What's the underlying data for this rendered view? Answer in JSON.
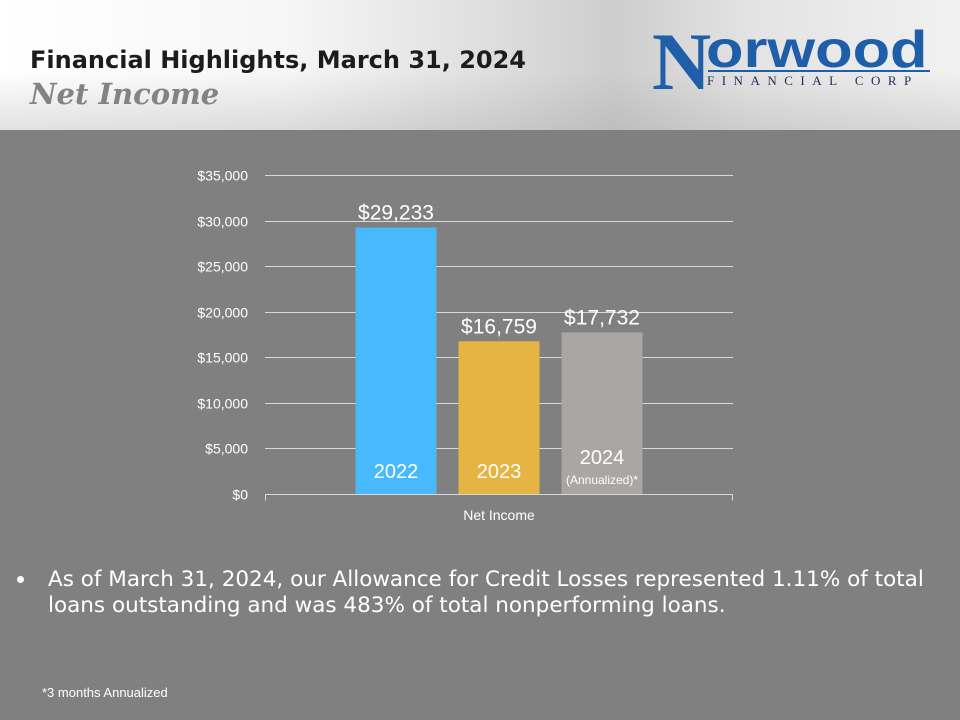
{
  "header": {
    "title": "Financial Highlights, March 31, 2024",
    "subtitle": "Net Income"
  },
  "logo": {
    "wordmark": "Norwood",
    "tagline": "FINANCIAL CORP",
    "color": "#1f5ea9"
  },
  "chart_data": {
    "type": "bar",
    "categories": [
      "Net Income"
    ],
    "series": [
      {
        "name": "2022",
        "values": [
          29233
        ],
        "value_label": "$29,233",
        "color": "#47b9fc"
      },
      {
        "name": "2023",
        "values": [
          16759
        ],
        "value_label": "$16,759",
        "color": "#e6b443"
      },
      {
        "name": "2024",
        "note": "(Annualized)*",
        "values": [
          17732
        ],
        "value_label": "$17,732",
        "color": "#a9a6a4"
      }
    ],
    "ylim": [
      0,
      35000
    ],
    "yticks": [
      0,
      5000,
      10000,
      15000,
      20000,
      25000,
      30000,
      35000
    ],
    "ytick_labels": [
      "$0",
      "$5,000",
      "$10,000",
      "$15,000",
      "$20,000",
      "$25,000",
      "$30,000",
      "$35,000"
    ],
    "grid": true,
    "legend": "none"
  },
  "bullets": [
    "As of March 31, 2024, our Allowance for Credit Losses represented 1.11% of total loans outstanding and was 483% of total nonperforming loans."
  ],
  "footnote": "*3 months Annualized"
}
